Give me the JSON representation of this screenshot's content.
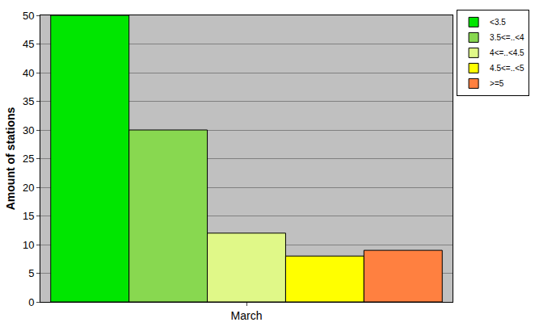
{
  "chart_data": {
    "type": "bar",
    "y_label": "Amount of stations",
    "categories": [
      "March"
    ],
    "series": [
      {
        "name": "<3.5",
        "color": "#00e600",
        "values": [
          50
        ]
      },
      {
        "name": "3.5<=..<4",
        "color": "#88d850",
        "values": [
          30
        ]
      },
      {
        "name": "4<=..<4.5",
        "color": "#e0f888",
        "values": [
          12
        ]
      },
      {
        "name": "4.5<=..<5",
        "color": "#ffff00",
        "values": [
          8
        ]
      },
      {
        "name": ">=5",
        "color": "#ff8040",
        "values": [
          9
        ]
      }
    ],
    "ylim": [
      0,
      50
    ],
    "yticks": [
      0,
      5,
      10,
      15,
      20,
      25,
      30,
      35,
      40,
      45,
      50
    ],
    "grid": true,
    "legend": "top-right"
  }
}
